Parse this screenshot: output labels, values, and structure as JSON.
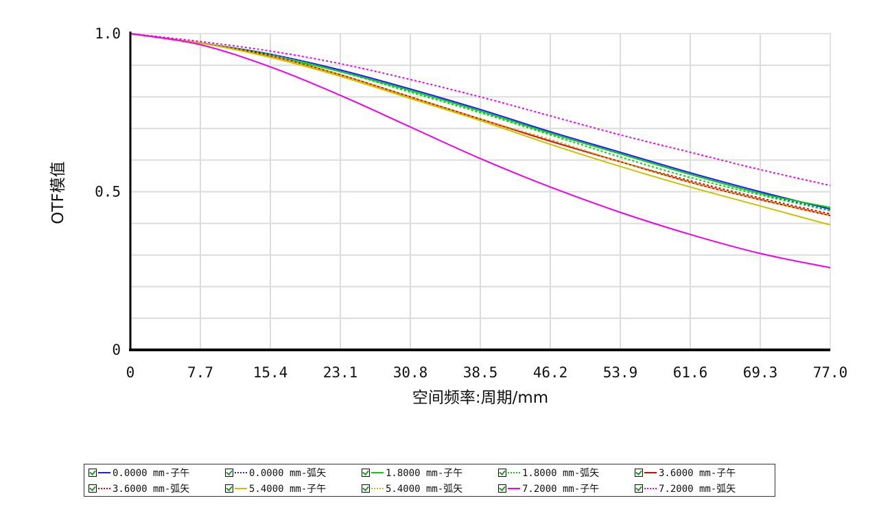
{
  "chart_data": {
    "type": "line",
    "xlabel": "空间频率:周期/mm",
    "ylabel": "OTF模值",
    "xlim": [
      0,
      77.0
    ],
    "ylim": [
      0,
      1.0
    ],
    "x_ticks": [
      "0",
      "7.7",
      "15.4",
      "23.1",
      "30.8",
      "38.5",
      "46.2",
      "53.9",
      "61.6",
      "69.3",
      "77.0"
    ],
    "y_ticks": [
      "0",
      "0.5",
      "1.0"
    ],
    "grid": true,
    "legend_position": "bottom",
    "x": [
      0,
      7.7,
      15.4,
      23.1,
      30.8,
      38.5,
      46.2,
      53.9,
      61.6,
      69.3,
      77.0
    ],
    "series": [
      {
        "name": "0.0000 mm-子午",
        "color": "#1a1aff",
        "style": "solid",
        "values": [
          1.0,
          0.97,
          0.935,
          0.885,
          0.825,
          0.76,
          0.69,
          0.625,
          0.56,
          0.5,
          0.445
        ]
      },
      {
        "name": "0.0000 mm-弧矢",
        "color": "#1a1aff",
        "style": "dotted",
        "values": [
          1.0,
          0.97,
          0.935,
          0.88,
          0.82,
          0.755,
          0.685,
          0.62,
          0.555,
          0.495,
          0.44
        ]
      },
      {
        "name": "1.8000 mm-子午",
        "color": "#00d200",
        "style": "solid",
        "values": [
          1.0,
          0.97,
          0.93,
          0.88,
          0.82,
          0.755,
          0.685,
          0.62,
          0.555,
          0.495,
          0.45
        ]
      },
      {
        "name": "1.8000 mm-弧矢",
        "color": "#00d200",
        "style": "dotted",
        "values": [
          1.0,
          0.97,
          0.935,
          0.88,
          0.815,
          0.75,
          0.68,
          0.61,
          0.545,
          0.49,
          0.44
        ]
      },
      {
        "name": "3.6000 mm-子午",
        "color": "#e00000",
        "style": "solid",
        "values": [
          1.0,
          0.97,
          0.93,
          0.87,
          0.8,
          0.73,
          0.66,
          0.595,
          0.53,
          0.475,
          0.425
        ]
      },
      {
        "name": "3.6000 mm-弧矢",
        "color": "#e00000",
        "style": "dotted",
        "values": [
          1.0,
          0.97,
          0.93,
          0.87,
          0.8,
          0.73,
          0.665,
          0.595,
          0.535,
          0.48,
          0.43
        ]
      },
      {
        "name": "5.4000 mm-子午",
        "color": "#c8c200",
        "style": "solid",
        "values": [
          1.0,
          0.97,
          0.925,
          0.865,
          0.795,
          0.725,
          0.65,
          0.58,
          0.515,
          0.455,
          0.395
        ]
      },
      {
        "name": "5.4000 mm-弧矢",
        "color": "#c8c200",
        "style": "dotted",
        "values": [
          1.0,
          0.97,
          0.93,
          0.87,
          0.8,
          0.73,
          0.665,
          0.595,
          0.53,
          0.475,
          0.425
        ]
      },
      {
        "name": "7.2000 mm-子午",
        "color": "#ee00ee",
        "style": "solid",
        "values": [
          1.0,
          0.965,
          0.895,
          0.805,
          0.705,
          0.605,
          0.515,
          0.435,
          0.365,
          0.305,
          0.26
        ]
      },
      {
        "name": "7.2000 mm-弧矢",
        "color": "#ee00ee",
        "style": "dotted",
        "values": [
          1.0,
          0.975,
          0.945,
          0.905,
          0.855,
          0.8,
          0.74,
          0.68,
          0.625,
          0.57,
          0.52
        ]
      }
    ]
  }
}
